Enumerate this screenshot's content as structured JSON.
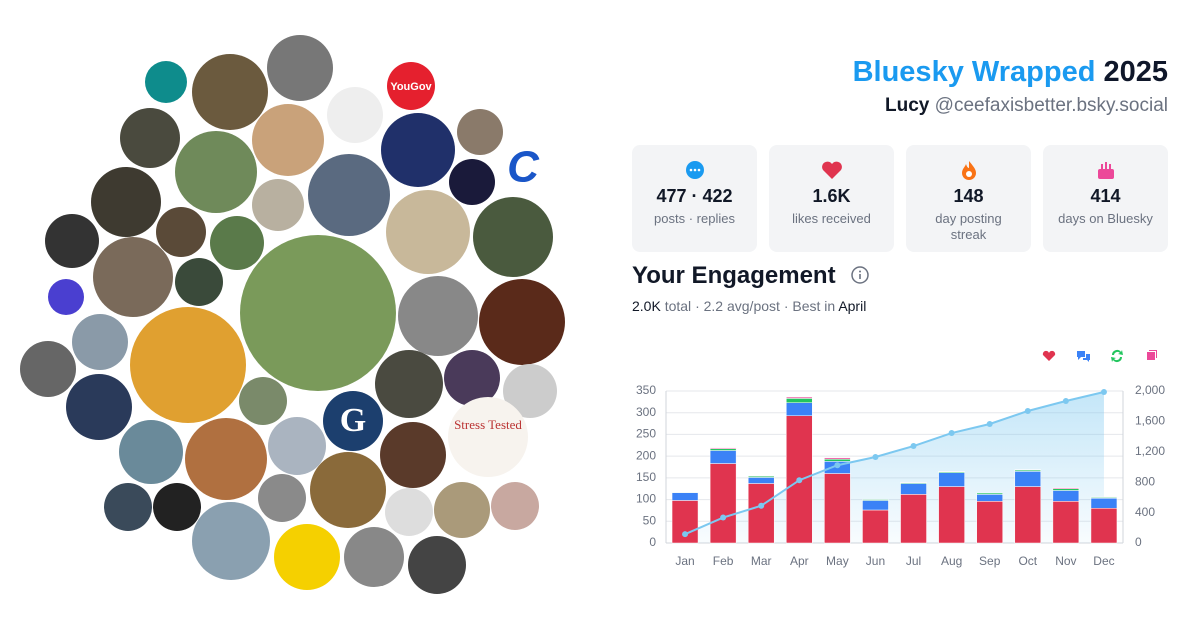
{
  "header": {
    "title_app": "Bluesky Wrapped",
    "title_year": "2025",
    "name": "Lucy",
    "handle": "@ceefaxisbetter.bsky.social"
  },
  "avatars_text": [
    "YouGov",
    "Stress Tested",
    "C",
    "G"
  ],
  "stats": [
    {
      "value": "477 · 422",
      "label": "posts · replies"
    },
    {
      "value": "1.6K",
      "label": "likes received"
    },
    {
      "value": "148",
      "label": "day posting streak"
    },
    {
      "value": "414",
      "label": "days on Bluesky"
    }
  ],
  "engagement": {
    "title": "Your Engagement",
    "total": "2.0K",
    "total_label": "total",
    "separator": "·",
    "avg": "2.2",
    "avg_label": "avg/post",
    "best_prefix": "Best in",
    "best": "April"
  },
  "chart_data": {
    "type": "bar",
    "stacked": true,
    "categories": [
      "Jan",
      "Feb",
      "Mar",
      "Apr",
      "May",
      "Jun",
      "Jul",
      "Aug",
      "Sep",
      "Oct",
      "Nov",
      "Dec"
    ],
    "series": [
      {
        "color": "#e0344f",
        "values": [
          98,
          183,
          137,
          293,
          160,
          76,
          112,
          130,
          96,
          130,
          96,
          80
        ]
      },
      {
        "color": "#3b82f6",
        "values": [
          18,
          30,
          14,
          30,
          28,
          22,
          25,
          32,
          16,
          35,
          25,
          23
        ]
      },
      {
        "color": "#22c55e",
        "values": [
          1,
          4,
          3,
          10,
          5,
          2,
          2,
          2,
          3,
          3,
          4,
          2
        ]
      },
      {
        "color": "#ec4899",
        "values": [
          0,
          2,
          1,
          3,
          3,
          0,
          1,
          1,
          0,
          1,
          2,
          1
        ]
      },
      {
        "color": "#7cc8f0",
        "type": "line",
        "axis": "y2",
        "values": [
          116,
          335,
          490,
          826,
          1023,
          1132,
          1276,
          1447,
          1566,
          1737,
          1868,
          1987
        ]
      }
    ],
    "ylim": [
      0,
      350
    ],
    "yticks": [
      0,
      50,
      100,
      150,
      200,
      250,
      300,
      350
    ],
    "y2lim": [
      0,
      2000
    ],
    "y2ticks": [
      0,
      400,
      800,
      {
        "value": 1200,
        "label": "1,200"
      },
      {
        "value": 1600,
        "label": "1,600"
      },
      {
        "value": 2000,
        "label": "2,000"
      }
    ],
    "grid": true
  }
}
